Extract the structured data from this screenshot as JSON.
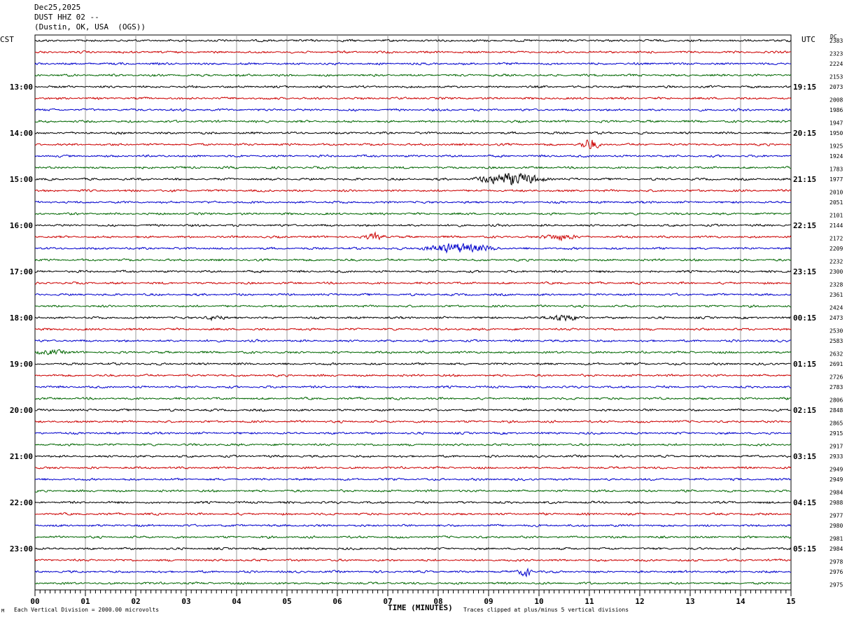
{
  "header": {
    "date": "Dec25,2025",
    "station": "DUST HHZ 02 --",
    "location": "(Dustin, OK, USA  (OGS))"
  },
  "labels": {
    "left_tz": "CST",
    "right_tz": "UTC",
    "dc": "DC",
    "xlabel": "TIME (MINUTES)",
    "footer_left": "Each Vertical Division = 2000.00 microvolts",
    "footer_right": "Traces clipped at plus/minus 5 vertical divisions",
    "corner_mark": "M"
  },
  "chart_data": {
    "type": "line",
    "x_ticks": [
      "00",
      "01",
      "02",
      "03",
      "04",
      "05",
      "06",
      "07",
      "08",
      "09",
      "10",
      "11",
      "12",
      "13",
      "14",
      "15"
    ],
    "xlim": [
      0,
      15
    ],
    "trace_colors": [
      "#000000",
      "#cc0000",
      "#0000cc",
      "#006600"
    ],
    "left_hour_labels": [
      "13:00",
      "14:00",
      "15:00",
      "16:00",
      "17:00",
      "18:00",
      "19:00",
      "20:00",
      "21:00",
      "22:00",
      "23:00"
    ],
    "right_hour_labels": [
      "19:15",
      "20:15",
      "21:15",
      "22:15",
      "23:15",
      "00:15",
      "01:15",
      "02:15",
      "03:15",
      "04:15",
      "05:15"
    ],
    "dc_values": [
      "2383",
      "2323",
      "2224",
      "2153",
      "2073",
      "2008",
      "1986",
      "1947",
      "1950",
      "1925",
      "1924",
      "1783",
      "1977",
      "2010",
      "2051",
      "2101",
      "2144",
      "2172",
      "2209",
      "2232",
      "2300",
      "2328",
      "2361",
      "2424",
      "2473",
      "2530",
      "2583",
      "2632",
      "2691",
      "2726",
      "2783",
      "2806",
      "2848",
      "2865",
      "2915",
      "2917",
      "2933",
      "2949",
      "2949",
      "2984",
      "2988",
      "2977",
      "2980",
      "2981",
      "2984",
      "2978",
      "2976",
      "2975"
    ],
    "events": [
      {
        "trace": 9,
        "start": 10.75,
        "end": 11.25,
        "amp": 7
      },
      {
        "trace": 12,
        "start": 8.6,
        "end": 10.3,
        "amp": 8
      },
      {
        "trace": 17,
        "start": 6.5,
        "end": 7.0,
        "amp": 4
      },
      {
        "trace": 17,
        "start": 10.0,
        "end": 10.8,
        "amp": 4
      },
      {
        "trace": 18,
        "start": 7.5,
        "end": 9.3,
        "amp": 6
      },
      {
        "trace": 24,
        "start": 3.3,
        "end": 3.8,
        "amp": 3
      },
      {
        "trace": 24,
        "start": 10.0,
        "end": 10.9,
        "amp": 4
      },
      {
        "trace": 27,
        "start": 0.0,
        "end": 0.7,
        "amp": 3
      },
      {
        "trace": 46,
        "start": 9.55,
        "end": 9.9,
        "amp": 6
      }
    ]
  }
}
